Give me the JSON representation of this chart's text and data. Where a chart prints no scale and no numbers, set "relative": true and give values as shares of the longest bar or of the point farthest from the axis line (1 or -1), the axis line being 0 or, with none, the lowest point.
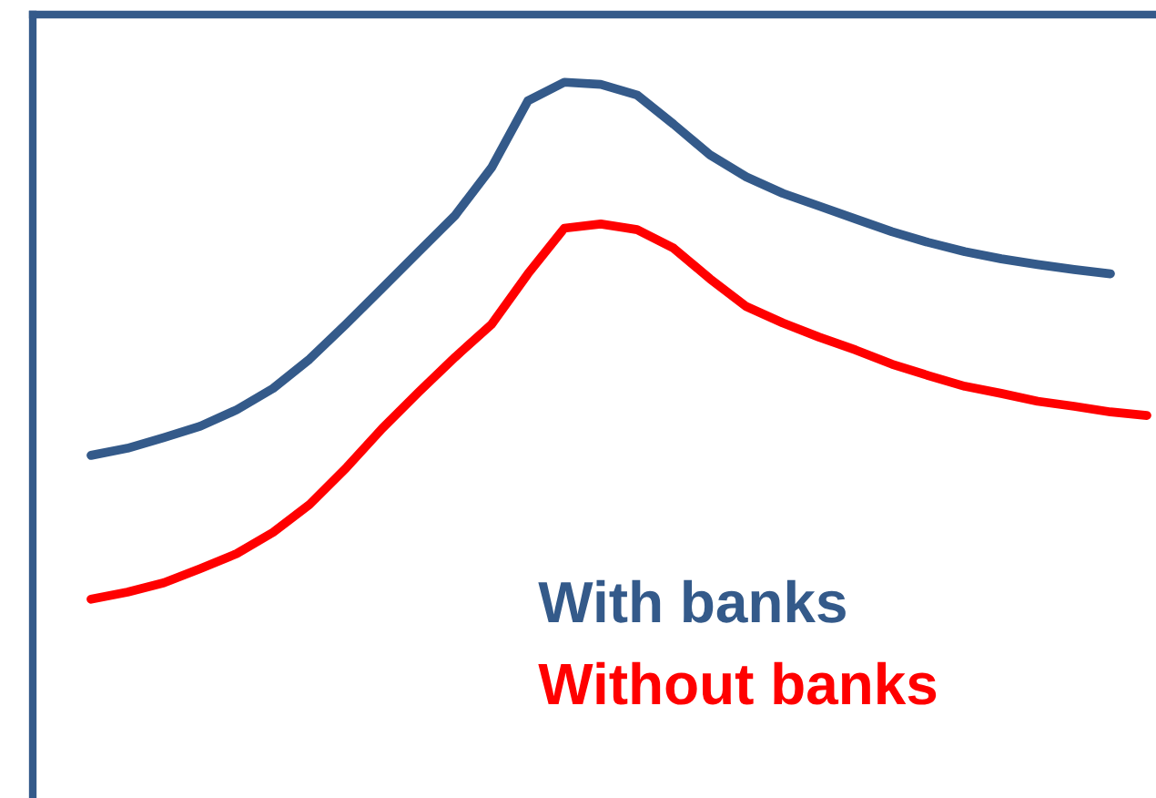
{
  "chart_data": {
    "type": "line",
    "relative": true,
    "legend": "bottom",
    "marker": "none",
    "line_style": "solid",
    "categories": [
      null,
      null,
      null,
      null,
      null,
      null,
      null,
      null,
      null,
      null,
      null,
      null,
      null,
      null,
      null,
      null,
      null,
      null,
      null,
      null,
      null,
      null,
      null,
      null,
      null,
      null,
      null,
      null,
      null,
      null,
      null
    ],
    "series": [
      {
        "name": "With banks",
        "color": "#345a8a",
        "values": [
          null,
          0.476,
          0.486,
          0.501,
          0.517,
          0.54,
          0.57,
          0.611,
          0.66,
          0.711,
          0.762,
          0.813,
          0.88,
          0.974,
          1,
          0.997,
          0.982,
          0.941,
          0.898,
          0.867,
          0.844,
          0.826,
          0.808,
          0.79,
          0.775,
          0.762,
          0.752,
          0.744,
          0.737,
          0.731,
          null
        ]
      },
      {
        "name": "Without banks",
        "color": "#ff0000",
        "values": [
          null,
          0.274,
          0.284,
          0.297,
          0.317,
          0.338,
          0.368,
          0.407,
          0.458,
          0.514,
          0.565,
          0.614,
          0.66,
          0.731,
          0.795,
          0.801,
          0.793,
          0.767,
          0.724,
          0.685,
          0.662,
          0.642,
          0.624,
          0.604,
          0.588,
          0.573,
          0.563,
          0.552,
          0.545,
          0.537,
          0.532
        ]
      }
    ]
  }
}
